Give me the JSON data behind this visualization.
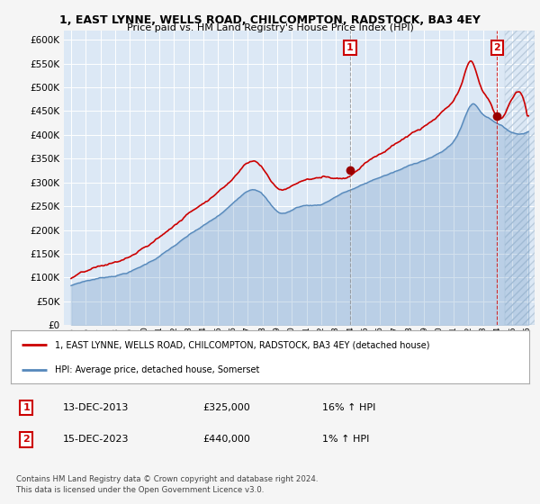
{
  "title": "1, EAST LYNNE, WELLS ROAD, CHILCOMPTON, RADSTOCK, BA3 4EY",
  "subtitle": "Price paid vs. HM Land Registry's House Price Index (HPI)",
  "ylim": [
    0,
    620000
  ],
  "yticks": [
    0,
    50000,
    100000,
    150000,
    200000,
    250000,
    300000,
    350000,
    400000,
    450000,
    500000,
    550000,
    600000
  ],
  "bg_color": "#dce8f5",
  "grid_color": "#ffffff",
  "sale1_date": "13-DEC-2013",
  "sale1_price": 325000,
  "sale1_hpi": "16% ↑ HPI",
  "sale1_year": 2013.96,
  "sale2_date": "15-DEC-2023",
  "sale2_price": 440000,
  "sale2_hpi": "1% ↑ HPI",
  "sale2_year": 2023.96,
  "legend_label1": "1, EAST LYNNE, WELLS ROAD, CHILCOMPTON, RADSTOCK, BA3 4EY (detached house)",
  "legend_label2": "HPI: Average price, detached house, Somerset",
  "footer": "Contains HM Land Registry data © Crown copyright and database right 2024.\nThis data is licensed under the Open Government Licence v3.0.",
  "red_line_color": "#cc0000",
  "blue_line_color": "#5588bb",
  "fig_bg": "#f5f5f5",
  "xmin": 1994.5,
  "xmax": 2026.5
}
